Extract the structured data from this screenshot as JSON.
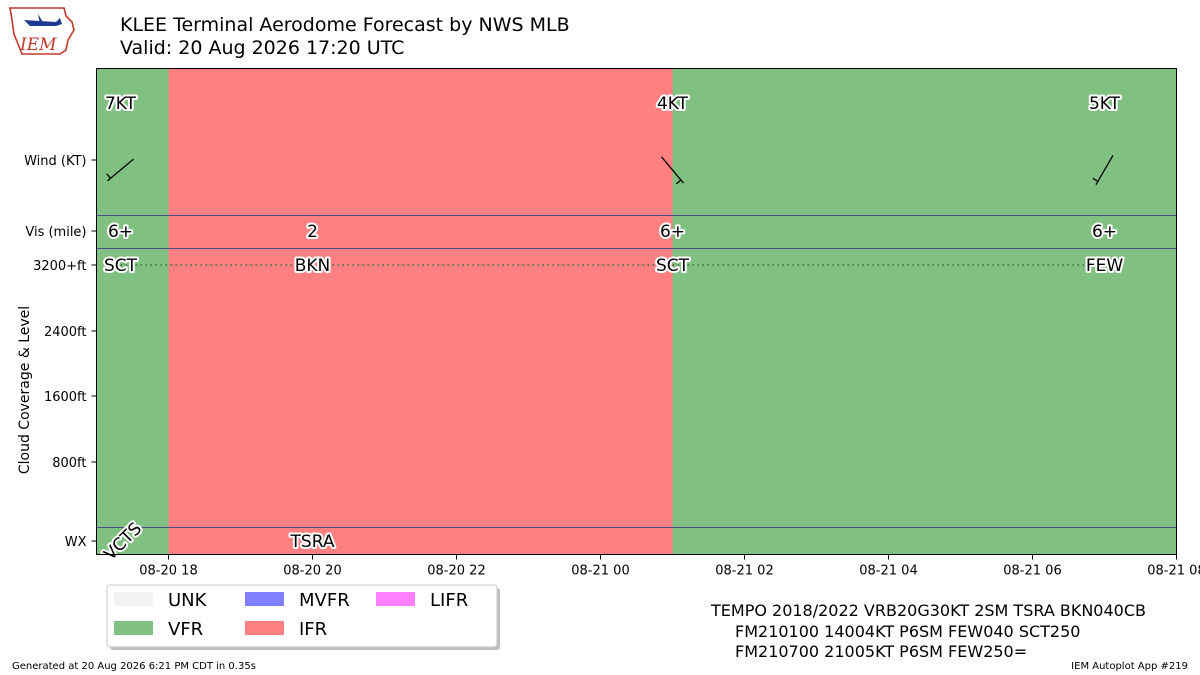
{
  "logo": {
    "text": "IEM"
  },
  "title": {
    "line1": "KLEE Terminal Aerodome Forecast by NWS MLB",
    "line2": "Valid: 20 Aug 2026 17:20 UTC"
  },
  "footer": {
    "left": "Generated at 20 Aug 2026 6:21 PM CDT in 0.35s",
    "right": "IEM Autoplot App #219"
  },
  "taf_text": [
    "TEMPO 2018/2022 VRB20G30KT 2SM TSRA BKN040CB",
    "FM210100 14004KT P6SM FEW040 SCT250",
    "FM210700 21005KT P6SM FEW250="
  ],
  "colors": {
    "UNK": "#f2f2f2",
    "VFR": "#80c080",
    "MVFR": "#8080ff",
    "IFR": "#ff8080",
    "LIFR": "#ff80ff",
    "separator": "#4b4b8f"
  },
  "chart_data": {
    "type": "timeline",
    "y_rows": [
      "Wind (KT)",
      "Vis (mile)",
      "3200+ft",
      "2400ft",
      "1600ft",
      "800ft",
      "WX"
    ],
    "ylabel": "Cloud Coverage & Level",
    "x_range": [
      "2026-08-20T17:00Z",
      "2026-08-21T08:00Z"
    ],
    "x_ticks": [
      "08-20 18",
      "08-20 20",
      "08-20 22",
      "08-21 00",
      "08-21 02",
      "08-21 04",
      "08-21 06",
      "08-21 08"
    ],
    "x_tick_hours": [
      1,
      3,
      5,
      7,
      9,
      11,
      13,
      15
    ],
    "x_end_hours": 15,
    "category_spans": [
      {
        "category": "VFR",
        "start": "2026-08-20T17:00Z",
        "end": "2026-08-20T18:00Z"
      },
      {
        "category": "IFR",
        "start": "2026-08-20T18:00Z",
        "end": "2026-08-21T01:00Z"
      },
      {
        "category": "VFR",
        "start": "2026-08-21T01:00Z",
        "end": "2026-08-21T08:00Z"
      }
    ],
    "forecasts": [
      {
        "time": "2026-08-20T17:20Z",
        "wind_dir": 230,
        "wind_kt": 7,
        "wind_label": "7KT",
        "vis": "6+",
        "cloud": "SCT",
        "cloud_level": "3200+ft",
        "wx": "VCTS"
      },
      {
        "time": "2026-08-20T20:00Z",
        "vis": "2",
        "cloud": "BKN",
        "cloud_level": "3200+ft",
        "wx": "TSRA"
      },
      {
        "time": "2026-08-21T01:00Z",
        "wind_dir": 140,
        "wind_kt": 4,
        "wind_label": "4KT",
        "vis": "6+",
        "cloud": "SCT",
        "cloud_level": "3200+ft"
      },
      {
        "time": "2026-08-21T07:00Z",
        "wind_dir": 210,
        "wind_kt": 5,
        "wind_label": "5KT",
        "vis": "6+",
        "cloud": "FEW",
        "cloud_level": "3200+ft"
      }
    ],
    "legend": [
      "UNK",
      "MVFR",
      "LIFR",
      "VFR",
      "IFR"
    ]
  }
}
